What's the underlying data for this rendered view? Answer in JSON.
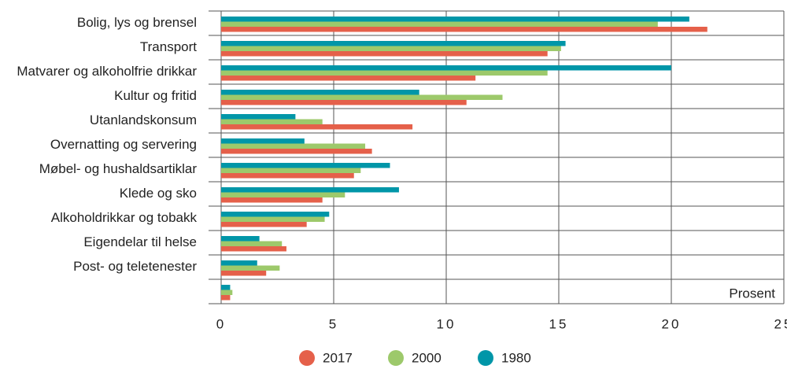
{
  "chart_data": {
    "type": "bar",
    "orientation": "horizontal",
    "x_label": "Prosent",
    "categories": [
      "Bolig, lys og brensel",
      "Transport",
      "Matvarer og alkoholfrie drikkar",
      "Kultur og fritid",
      "Utanlandskonsum",
      "Overnatting og servering",
      "Møbel- og hushaldsartiklar",
      "Klede og sko",
      "Alkoholdrikkar og tobakk",
      "Eigendelar til helse",
      "Post- og teletenester",
      null
    ],
    "series": [
      {
        "name": "2017",
        "color": "#e5604a",
        "values": [
          21.6,
          14.5,
          11.3,
          10.9,
          8.5,
          6.7,
          5.9,
          4.5,
          3.8,
          2.9,
          2.0,
          0.4
        ]
      },
      {
        "name": "2000",
        "color": "#9dc96b",
        "values": [
          19.4,
          15.1,
          14.5,
          12.5,
          4.5,
          6.4,
          6.2,
          5.5,
          4.6,
          2.7,
          2.6,
          0.5
        ]
      },
      {
        "name": "1980",
        "color": "#0096a8",
        "values": [
          20.8,
          15.3,
          20.0,
          8.8,
          3.3,
          3.7,
          7.5,
          7.9,
          4.8,
          1.7,
          1.6,
          0.4
        ]
      }
    ],
    "xlim": [
      0,
      25
    ],
    "xticks": [
      0,
      5,
      10,
      15,
      20,
      25
    ],
    "grid": true
  }
}
